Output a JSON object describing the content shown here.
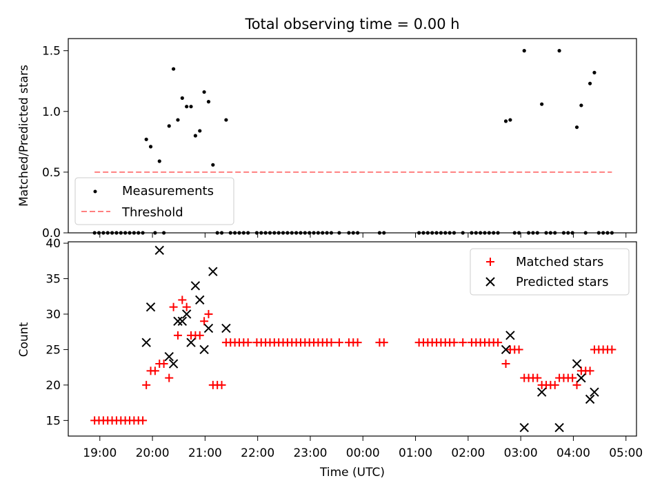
{
  "chart_data": [
    {
      "type": "scatter",
      "title": "Total observing time = 0.00 h",
      "xlabel": "",
      "ylabel": "Matched/Predicted stars",
      "xlim": [
        "18:24",
        "05:12"
      ],
      "ylim": [
        0,
        1.6
      ],
      "yticks": [
        "0.0",
        "0.5",
        "1.0",
        "1.5"
      ],
      "grid": false,
      "legend_position": "lower-left",
      "series": [
        {
          "name": "Measurements",
          "marker": "dot",
          "color": "#000000",
          "points": [
            [
              "18:54",
              0
            ],
            [
              "18:59",
              0
            ],
            [
              "19:04",
              0
            ],
            [
              "19:09",
              0
            ],
            [
              "19:14",
              0
            ],
            [
              "19:19",
              0
            ],
            [
              "19:24",
              0
            ],
            [
              "19:29",
              0
            ],
            [
              "19:34",
              0
            ],
            [
              "19:39",
              0
            ],
            [
              "19:44",
              0
            ],
            [
              "19:49",
              0
            ],
            [
              "19:53",
              0.77
            ],
            [
              "19:58",
              0.71
            ],
            [
              "20:03",
              0
            ],
            [
              "20:08",
              0.59
            ],
            [
              "20:13",
              0
            ],
            [
              "20:19",
              0.88
            ],
            [
              "20:24",
              1.35
            ],
            [
              "20:29",
              0.93
            ],
            [
              "20:34",
              1.11
            ],
            [
              "20:39",
              1.04
            ],
            [
              "20:44",
              1.04
            ],
            [
              "20:49",
              0.8
            ],
            [
              "20:54",
              0.84
            ],
            [
              "20:59",
              1.16
            ],
            [
              "21:04",
              1.08
            ],
            [
              "21:09",
              0.56
            ],
            [
              "21:14",
              0
            ],
            [
              "21:19",
              0
            ],
            [
              "21:24",
              0.93
            ],
            [
              "21:29",
              0
            ],
            [
              "21:34",
              0
            ],
            [
              "21:39",
              0
            ],
            [
              "21:44",
              0
            ],
            [
              "21:49",
              0
            ],
            [
              "21:59",
              0
            ],
            [
              "22:04",
              0
            ],
            [
              "22:09",
              0
            ],
            [
              "22:14",
              0
            ],
            [
              "22:19",
              0
            ],
            [
              "22:24",
              0
            ],
            [
              "22:29",
              0
            ],
            [
              "22:34",
              0
            ],
            [
              "22:39",
              0
            ],
            [
              "22:44",
              0
            ],
            [
              "22:49",
              0
            ],
            [
              "22:54",
              0
            ],
            [
              "22:59",
              0
            ],
            [
              "23:04",
              0
            ],
            [
              "23:09",
              0
            ],
            [
              "23:14",
              0
            ],
            [
              "23:19",
              0
            ],
            [
              "23:24",
              0
            ],
            [
              "23:33",
              0
            ],
            [
              "23:44",
              0
            ],
            [
              "23:49",
              0
            ],
            [
              "23:54",
              0
            ],
            [
              "00:19",
              0
            ],
            [
              "00:24",
              0
            ],
            [
              "01:04",
              0
            ],
            [
              "01:09",
              0
            ],
            [
              "01:14",
              0
            ],
            [
              "01:19",
              0
            ],
            [
              "01:24",
              0
            ],
            [
              "01:29",
              0
            ],
            [
              "01:34",
              0
            ],
            [
              "01:39",
              0
            ],
            [
              "01:44",
              0
            ],
            [
              "01:54",
              0
            ],
            [
              "02:04",
              0
            ],
            [
              "02:09",
              0
            ],
            [
              "02:14",
              0
            ],
            [
              "02:19",
              0
            ],
            [
              "02:24",
              0
            ],
            [
              "02:29",
              0
            ],
            [
              "02:34",
              0
            ],
            [
              "02:43",
              0.92
            ],
            [
              "02:48",
              0.93
            ],
            [
              "02:53",
              0
            ],
            [
              "02:58",
              0
            ],
            [
              "03:04",
              1.5
            ],
            [
              "03:09",
              0
            ],
            [
              "03:14",
              0
            ],
            [
              "03:19",
              0
            ],
            [
              "03:24",
              1.06
            ],
            [
              "03:29",
              0
            ],
            [
              "03:34",
              0
            ],
            [
              "03:39",
              0
            ],
            [
              "03:44",
              1.5
            ],
            [
              "03:49",
              0
            ],
            [
              "03:54",
              0
            ],
            [
              "03:59",
              0
            ],
            [
              "04:04",
              0.87
            ],
            [
              "04:09",
              1.05
            ],
            [
              "04:14",
              0
            ],
            [
              "04:19",
              1.23
            ],
            [
              "04:24",
              1.32
            ],
            [
              "04:29",
              0
            ],
            [
              "04:34",
              0
            ],
            [
              "04:39",
              0
            ],
            [
              "04:44",
              0
            ]
          ]
        },
        {
          "name": "Threshold",
          "style": "dashed",
          "color": "#ff7f7f",
          "points": [
            [
              "18:54",
              0.5
            ],
            [
              "04:44",
              0.5
            ]
          ]
        }
      ]
    },
    {
      "type": "scatter",
      "title": "",
      "xlabel": "Time (UTC)",
      "ylabel": "Count",
      "xlim": [
        "18:24",
        "05:12"
      ],
      "ylim": [
        12.8,
        40.2
      ],
      "yticks": [
        "15",
        "20",
        "25",
        "30",
        "35",
        "40"
      ],
      "xticks": [
        "19:00",
        "20:00",
        "21:00",
        "22:00",
        "23:00",
        "00:00",
        "01:00",
        "02:00",
        "03:00",
        "04:00",
        "05:00"
      ],
      "grid": false,
      "legend_position": "upper-right",
      "series": [
        {
          "name": "Matched stars",
          "marker": "plus",
          "color": "#ff0000",
          "points": [
            [
              "18:54",
              15
            ],
            [
              "18:59",
              15
            ],
            [
              "19:04",
              15
            ],
            [
              "19:09",
              15
            ],
            [
              "19:14",
              15
            ],
            [
              "19:19",
              15
            ],
            [
              "19:24",
              15
            ],
            [
              "19:29",
              15
            ],
            [
              "19:34",
              15
            ],
            [
              "19:39",
              15
            ],
            [
              "19:44",
              15
            ],
            [
              "19:49",
              15
            ],
            [
              "19:53",
              20
            ],
            [
              "19:58",
              22
            ],
            [
              "20:03",
              22
            ],
            [
              "20:08",
              23
            ],
            [
              "20:13",
              23
            ],
            [
              "20:19",
              21
            ],
            [
              "20:24",
              31
            ],
            [
              "20:29",
              27
            ],
            [
              "20:34",
              32
            ],
            [
              "20:39",
              31
            ],
            [
              "20:44",
              27
            ],
            [
              "20:49",
              27
            ],
            [
              "20:54",
              27
            ],
            [
              "20:59",
              29
            ],
            [
              "21:04",
              30
            ],
            [
              "21:09",
              20
            ],
            [
              "21:14",
              20
            ],
            [
              "21:19",
              20
            ],
            [
              "21:24",
              26
            ],
            [
              "21:29",
              26
            ],
            [
              "21:34",
              26
            ],
            [
              "21:39",
              26
            ],
            [
              "21:44",
              26
            ],
            [
              "21:49",
              26
            ],
            [
              "21:59",
              26
            ],
            [
              "22:04",
              26
            ],
            [
              "22:09",
              26
            ],
            [
              "22:14",
              26
            ],
            [
              "22:19",
              26
            ],
            [
              "22:24",
              26
            ],
            [
              "22:29",
              26
            ],
            [
              "22:34",
              26
            ],
            [
              "22:39",
              26
            ],
            [
              "22:44",
              26
            ],
            [
              "22:49",
              26
            ],
            [
              "22:54",
              26
            ],
            [
              "22:59",
              26
            ],
            [
              "23:04",
              26
            ],
            [
              "23:09",
              26
            ],
            [
              "23:14",
              26
            ],
            [
              "23:19",
              26
            ],
            [
              "23:24",
              26
            ],
            [
              "23:33",
              26
            ],
            [
              "23:44",
              26
            ],
            [
              "23:49",
              26
            ],
            [
              "23:54",
              26
            ],
            [
              "00:19",
              26
            ],
            [
              "00:24",
              26
            ],
            [
              "01:04",
              26
            ],
            [
              "01:09",
              26
            ],
            [
              "01:14",
              26
            ],
            [
              "01:19",
              26
            ],
            [
              "01:24",
              26
            ],
            [
              "01:29",
              26
            ],
            [
              "01:34",
              26
            ],
            [
              "01:39",
              26
            ],
            [
              "01:44",
              26
            ],
            [
              "01:54",
              26
            ],
            [
              "02:04",
              26
            ],
            [
              "02:09",
              26
            ],
            [
              "02:14",
              26
            ],
            [
              "02:19",
              26
            ],
            [
              "02:24",
              26
            ],
            [
              "02:29",
              26
            ],
            [
              "02:34",
              26
            ],
            [
              "02:43",
              23
            ],
            [
              "02:48",
              25
            ],
            [
              "02:53",
              25
            ],
            [
              "02:58",
              25
            ],
            [
              "03:04",
              21
            ],
            [
              "03:09",
              21
            ],
            [
              "03:14",
              21
            ],
            [
              "03:19",
              21
            ],
            [
              "03:24",
              20
            ],
            [
              "03:29",
              20
            ],
            [
              "03:34",
              20
            ],
            [
              "03:39",
              20
            ],
            [
              "03:44",
              21
            ],
            [
              "03:49",
              21
            ],
            [
              "03:54",
              21
            ],
            [
              "03:59",
              21
            ],
            [
              "04:04",
              20
            ],
            [
              "04:09",
              22
            ],
            [
              "04:14",
              22
            ],
            [
              "04:19",
              22
            ],
            [
              "04:24",
              25
            ],
            [
              "04:29",
              25
            ],
            [
              "04:34",
              25
            ],
            [
              "04:39",
              25
            ],
            [
              "04:44",
              25
            ]
          ]
        },
        {
          "name": "Predicted stars",
          "marker": "x",
          "color": "#000000",
          "points": [
            [
              "19:53",
              26
            ],
            [
              "19:58",
              31
            ],
            [
              "20:08",
              39
            ],
            [
              "20:19",
              24
            ],
            [
              "20:24",
              23
            ],
            [
              "20:29",
              29
            ],
            [
              "20:34",
              29
            ],
            [
              "20:39",
              30
            ],
            [
              "20:44",
              26
            ],
            [
              "20:49",
              34
            ],
            [
              "20:54",
              32
            ],
            [
              "20:59",
              25
            ],
            [
              "21:04",
              28
            ],
            [
              "21:09",
              36
            ],
            [
              "21:24",
              28
            ],
            [
              "02:43",
              25
            ],
            [
              "02:48",
              27
            ],
            [
              "03:04",
              14
            ],
            [
              "03:24",
              19
            ],
            [
              "03:44",
              14
            ],
            [
              "04:04",
              23
            ],
            [
              "04:09",
              21
            ],
            [
              "04:19",
              18
            ],
            [
              "04:24",
              19
            ]
          ]
        }
      ]
    }
  ]
}
